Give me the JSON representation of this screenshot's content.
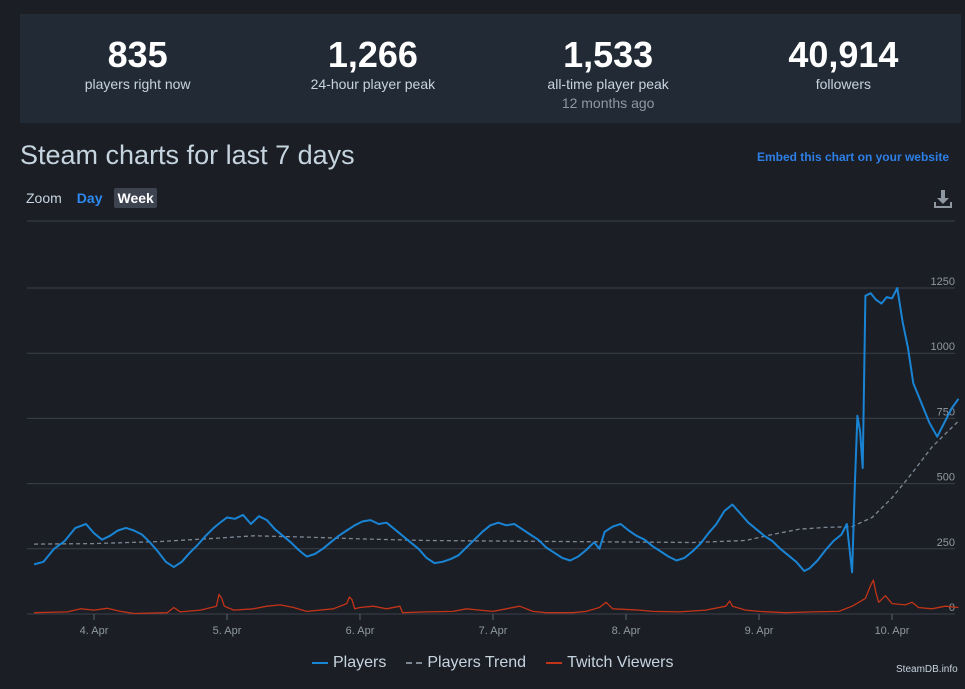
{
  "stats": [
    {
      "value": "835",
      "label": "players right now",
      "sub": ""
    },
    {
      "value": "1,266",
      "label": "24-hour player peak",
      "sub": ""
    },
    {
      "value": "1,533",
      "label": "all-time player peak",
      "sub": "12 months ago"
    },
    {
      "value": "40,914",
      "label": "followers",
      "sub": ""
    }
  ],
  "header": {
    "title": "Steam charts for last 7 days",
    "embed_link": "Embed this chart on your website"
  },
  "zoom": {
    "label": "Zoom",
    "day": "Day",
    "week": "Week"
  },
  "download_icon": "download-icon",
  "credit": "SteamDB.info",
  "chart_data": {
    "type": "line",
    "xlabel": "",
    "ylabel": "",
    "ylim": [
      0,
      1250
    ],
    "yticks": [
      0,
      250,
      500,
      750,
      1000,
      1250
    ],
    "xticks": [
      "4. Apr",
      "5. Apr",
      "6. Apr",
      "7. Apr",
      "8. Apr",
      "9. Apr",
      "10. Apr"
    ],
    "xrange_days": [
      -0.45,
      6.5
    ],
    "legend_position": "bottom-center",
    "grid": true,
    "colors": {
      "players": "#1a84d4",
      "trend": "#7d8794",
      "twitch": "#c23418"
    },
    "series": [
      {
        "name": "Players",
        "style": "solid",
        "points": [
          [
            -0.45,
            190
          ],
          [
            -0.38,
            200
          ],
          [
            -0.3,
            250
          ],
          [
            -0.22,
            280
          ],
          [
            -0.14,
            330
          ],
          [
            -0.06,
            345
          ],
          [
            0.0,
            310
          ],
          [
            0.06,
            285
          ],
          [
            0.12,
            300
          ],
          [
            0.18,
            320
          ],
          [
            0.24,
            330
          ],
          [
            0.3,
            320
          ],
          [
            0.36,
            305
          ],
          [
            0.42,
            275
          ],
          [
            0.48,
            240
          ],
          [
            0.54,
            200
          ],
          [
            0.6,
            180
          ],
          [
            0.66,
            200
          ],
          [
            0.72,
            235
          ],
          [
            0.78,
            265
          ],
          [
            0.84,
            300
          ],
          [
            0.9,
            330
          ],
          [
            0.96,
            355
          ],
          [
            1.0,
            370
          ],
          [
            1.06,
            365
          ],
          [
            1.12,
            380
          ],
          [
            1.18,
            345
          ],
          [
            1.24,
            375
          ],
          [
            1.3,
            360
          ],
          [
            1.36,
            325
          ],
          [
            1.42,
            300
          ],
          [
            1.48,
            275
          ],
          [
            1.54,
            245
          ],
          [
            1.6,
            220
          ],
          [
            1.66,
            230
          ],
          [
            1.72,
            250
          ],
          [
            1.78,
            275
          ],
          [
            1.84,
            300
          ],
          [
            1.9,
            320
          ],
          [
            1.96,
            340
          ],
          [
            2.02,
            355
          ],
          [
            2.08,
            360
          ],
          [
            2.14,
            345
          ],
          [
            2.2,
            350
          ],
          [
            2.26,
            325
          ],
          [
            2.32,
            300
          ],
          [
            2.38,
            275
          ],
          [
            2.44,
            250
          ],
          [
            2.5,
            215
          ],
          [
            2.56,
            195
          ],
          [
            2.62,
            200
          ],
          [
            2.68,
            210
          ],
          [
            2.74,
            225
          ],
          [
            2.8,
            255
          ],
          [
            2.86,
            285
          ],
          [
            2.92,
            315
          ],
          [
            2.98,
            340
          ],
          [
            3.04,
            350
          ],
          [
            3.1,
            340
          ],
          [
            3.16,
            345
          ],
          [
            3.22,
            325
          ],
          [
            3.28,
            305
          ],
          [
            3.34,
            285
          ],
          [
            3.4,
            255
          ],
          [
            3.46,
            235
          ],
          [
            3.52,
            215
          ],
          [
            3.58,
            205
          ],
          [
            3.64,
            220
          ],
          [
            3.7,
            245
          ],
          [
            3.76,
            275
          ],
          [
            3.8,
            250
          ],
          [
            3.84,
            315
          ],
          [
            3.9,
            335
          ],
          [
            3.96,
            345
          ],
          [
            4.02,
            320
          ],
          [
            4.08,
            300
          ],
          [
            4.14,
            285
          ],
          [
            4.2,
            260
          ],
          [
            4.26,
            240
          ],
          [
            4.32,
            220
          ],
          [
            4.38,
            205
          ],
          [
            4.44,
            215
          ],
          [
            4.5,
            240
          ],
          [
            4.56,
            270
          ],
          [
            4.62,
            310
          ],
          [
            4.68,
            345
          ],
          [
            4.74,
            395
          ],
          [
            4.8,
            420
          ],
          [
            4.86,
            385
          ],
          [
            4.92,
            350
          ],
          [
            4.98,
            325
          ],
          [
            5.04,
            300
          ],
          [
            5.1,
            280
          ],
          [
            5.16,
            250
          ],
          [
            5.22,
            225
          ],
          [
            5.28,
            200
          ],
          [
            5.34,
            165
          ],
          [
            5.38,
            175
          ],
          [
            5.44,
            205
          ],
          [
            5.5,
            245
          ],
          [
            5.56,
            280
          ],
          [
            5.62,
            305
          ],
          [
            5.66,
            345
          ],
          [
            5.7,
            160
          ],
          [
            5.72,
            490
          ],
          [
            5.74,
            760
          ],
          [
            5.76,
            700
          ],
          [
            5.78,
            560
          ],
          [
            5.8,
            1220
          ],
          [
            5.84,
            1230
          ],
          [
            5.88,
            1205
          ],
          [
            5.92,
            1190
          ],
          [
            5.96,
            1215
          ],
          [
            6.0,
            1210
          ],
          [
            6.04,
            1250
          ],
          [
            6.08,
            1120
          ],
          [
            6.12,
            1020
          ],
          [
            6.16,
            885
          ],
          [
            6.22,
            810
          ],
          [
            6.28,
            735
          ],
          [
            6.34,
            680
          ],
          [
            6.4,
            740
          ],
          [
            6.45,
            790
          ],
          [
            6.5,
            825
          ]
        ]
      },
      {
        "name": "Players Trend",
        "style": "dashed",
        "points": [
          [
            -0.45,
            268
          ],
          [
            0.0,
            270
          ],
          [
            0.5,
            278
          ],
          [
            0.9,
            290
          ],
          [
            1.2,
            300
          ],
          [
            1.6,
            295
          ],
          [
            2.0,
            288
          ],
          [
            2.5,
            282
          ],
          [
            3.0,
            280
          ],
          [
            3.5,
            278
          ],
          [
            4.0,
            276
          ],
          [
            4.5,
            274
          ],
          [
            4.9,
            282
          ],
          [
            5.1,
            305
          ],
          [
            5.3,
            325
          ],
          [
            5.5,
            332
          ],
          [
            5.7,
            335
          ],
          [
            5.85,
            370
          ],
          [
            6.0,
            445
          ],
          [
            6.15,
            540
          ],
          [
            6.3,
            640
          ],
          [
            6.4,
            690
          ],
          [
            6.5,
            740
          ]
        ]
      },
      {
        "name": "Twitch Viewers",
        "style": "solid",
        "points": [
          [
            -0.45,
            5
          ],
          [
            -0.2,
            8
          ],
          [
            -0.1,
            20
          ],
          [
            0.0,
            15
          ],
          [
            0.1,
            22
          ],
          [
            0.2,
            10
          ],
          [
            0.3,
            2
          ],
          [
            0.55,
            5
          ],
          [
            0.6,
            25
          ],
          [
            0.65,
            8
          ],
          [
            0.8,
            15
          ],
          [
            0.92,
            30
          ],
          [
            0.94,
            75
          ],
          [
            0.96,
            60
          ],
          [
            0.98,
            30
          ],
          [
            1.05,
            15
          ],
          [
            1.2,
            20
          ],
          [
            1.3,
            30
          ],
          [
            1.4,
            35
          ],
          [
            1.5,
            25
          ],
          [
            1.6,
            10
          ],
          [
            1.8,
            20
          ],
          [
            1.9,
            40
          ],
          [
            1.92,
            65
          ],
          [
            1.94,
            55
          ],
          [
            1.96,
            20
          ],
          [
            2.0,
            25
          ],
          [
            2.1,
            30
          ],
          [
            2.2,
            20
          ],
          [
            2.3,
            30
          ],
          [
            2.32,
            5
          ],
          [
            2.5,
            8
          ],
          [
            2.7,
            10
          ],
          [
            2.8,
            20
          ],
          [
            2.9,
            15
          ],
          [
            3.0,
            10
          ],
          [
            3.1,
            20
          ],
          [
            3.2,
            30
          ],
          [
            3.3,
            10
          ],
          [
            3.4,
            5
          ],
          [
            3.6,
            5
          ],
          [
            3.7,
            10
          ],
          [
            3.8,
            25
          ],
          [
            3.85,
            45
          ],
          [
            3.9,
            20
          ],
          [
            4.1,
            15
          ],
          [
            4.2,
            10
          ],
          [
            4.4,
            8
          ],
          [
            4.6,
            15
          ],
          [
            4.75,
            30
          ],
          [
            4.78,
            50
          ],
          [
            4.8,
            30
          ],
          [
            4.9,
            15
          ],
          [
            5.0,
            10
          ],
          [
            5.2,
            5
          ],
          [
            5.4,
            8
          ],
          [
            5.6,
            10
          ],
          [
            5.7,
            30
          ],
          [
            5.8,
            60
          ],
          [
            5.84,
            110
          ],
          [
            5.86,
            130
          ],
          [
            5.88,
            80
          ],
          [
            5.9,
            45
          ],
          [
            5.95,
            70
          ],
          [
            6.0,
            40
          ],
          [
            6.1,
            35
          ],
          [
            6.15,
            45
          ],
          [
            6.2,
            25
          ],
          [
            6.3,
            20
          ],
          [
            6.4,
            30
          ],
          [
            6.5,
            25
          ]
        ]
      }
    ]
  }
}
